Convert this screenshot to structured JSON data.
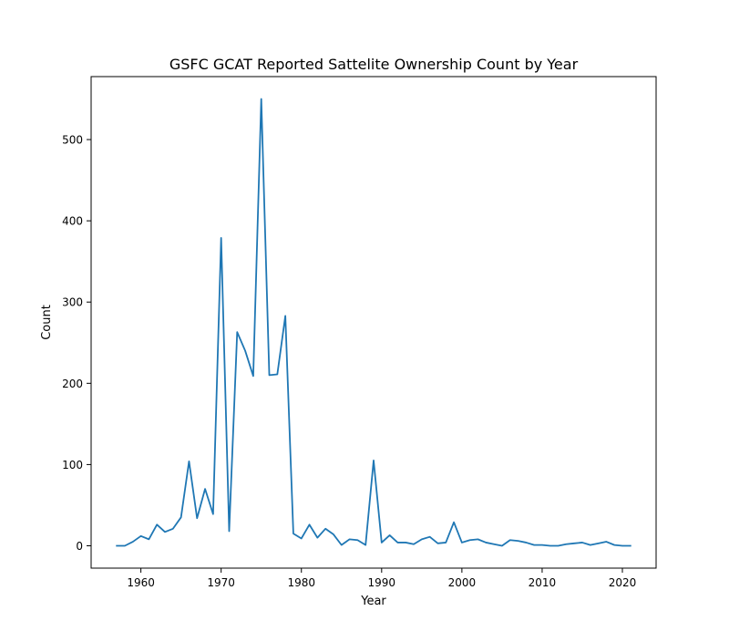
{
  "chart_data": {
    "type": "line",
    "title": "GSFC GCAT Reported Sattelite Ownership Count by Year",
    "xlabel": "Year",
    "ylabel": "Count",
    "xlim": [
      1953.8,
      2024.2
    ],
    "ylim": [
      -27.5,
      577.5
    ],
    "xticks": [
      1960,
      1970,
      1980,
      1990,
      2000,
      2010,
      2020
    ],
    "yticks": [
      0,
      100,
      200,
      300,
      400,
      500
    ],
    "grid": false,
    "legend": "none",
    "series": [
      {
        "color": "#1f77b4",
        "x": [
          1957,
          1958,
          1959,
          1960,
          1961,
          1962,
          1963,
          1964,
          1965,
          1966,
          1967,
          1968,
          1969,
          1970,
          1971,
          1972,
          1973,
          1974,
          1975,
          1976,
          1977,
          1978,
          1979,
          1980,
          1981,
          1982,
          1983,
          1984,
          1985,
          1986,
          1987,
          1988,
          1989,
          1990,
          1991,
          1992,
          1993,
          1994,
          1995,
          1996,
          1997,
          1998,
          1999,
          2000,
          2001,
          2002,
          2003,
          2004,
          2005,
          2006,
          2007,
          2008,
          2009,
          2010,
          2011,
          2012,
          2013,
          2014,
          2015,
          2016,
          2017,
          2018,
          2019,
          2020,
          2021
        ],
        "values": [
          0,
          0,
          5,
          12,
          8,
          26,
          17,
          21,
          35,
          104,
          34,
          70,
          39,
          379,
          18,
          263,
          240,
          209,
          550,
          210,
          211,
          283,
          15,
          9,
          26,
          10,
          21,
          14,
          1,
          8,
          7,
          1,
          105,
          4,
          13,
          4,
          4,
          2,
          8,
          11,
          3,
          4,
          29,
          4,
          7,
          8,
          4,
          2,
          0,
          7,
          6,
          4,
          1,
          1,
          0,
          0,
          2,
          3,
          4,
          1,
          3,
          5,
          1,
          0,
          0
        ]
      }
    ]
  }
}
